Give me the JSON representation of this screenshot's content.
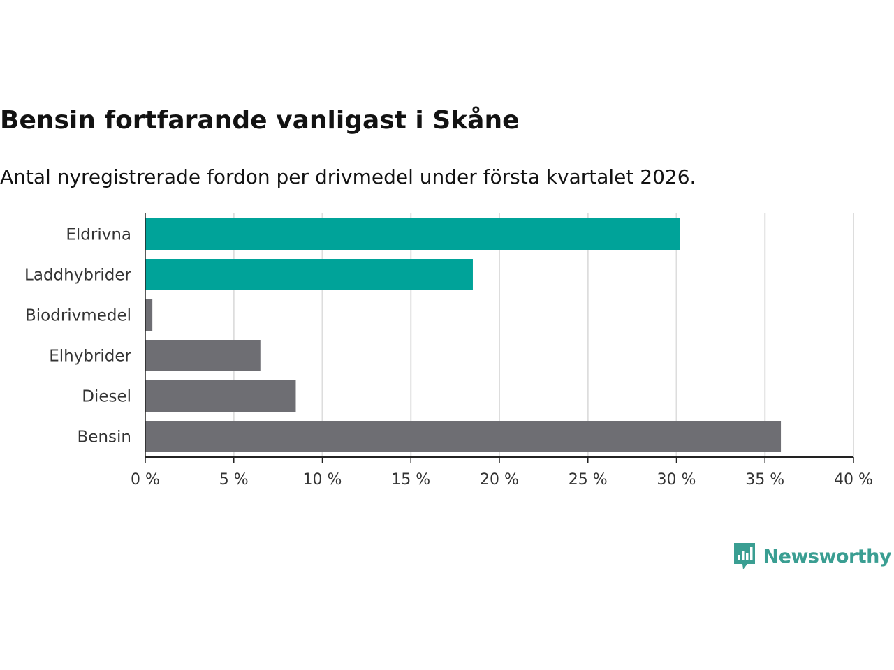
{
  "title": "Bensin fortfarande vanligast i Skåne",
  "subtitle": "Antal nyregistrerade fordon per drivmedel under första kvartalet 2026.",
  "colors": {
    "highlight": "#00a399",
    "default": "#6e6e73",
    "grid": "#dddddd",
    "axis": "#222222"
  },
  "chart_data": {
    "type": "bar",
    "orientation": "horizontal",
    "title": "Bensin fortfarande vanligast i Skåne",
    "subtitle": "Antal nyregistrerade fordon per drivmedel under första kvartalet 2026.",
    "xlabel": "",
    "ylabel": "",
    "unit": "%",
    "xlim": [
      0,
      40
    ],
    "x_ticks": [
      0,
      5,
      10,
      15,
      20,
      25,
      30,
      35,
      40
    ],
    "x_tick_labels": [
      "0 %",
      "5 %",
      "10 %",
      "15 %",
      "20 %",
      "25 %",
      "30 %",
      "35 %",
      "40 %"
    ],
    "grid": true,
    "legend": "none",
    "categories": [
      "Eldrivna",
      "Laddhybrider",
      "Biodrivmedel",
      "Elhybrider",
      "Diesel",
      "Bensin"
    ],
    "values": [
      30.2,
      18.5,
      0.4,
      6.5,
      8.5,
      35.9
    ],
    "highlighted": [
      true,
      true,
      false,
      false,
      false,
      false
    ]
  },
  "brand": {
    "name": "Newsworthy",
    "icon": "newsworthy-logo-icon"
  }
}
